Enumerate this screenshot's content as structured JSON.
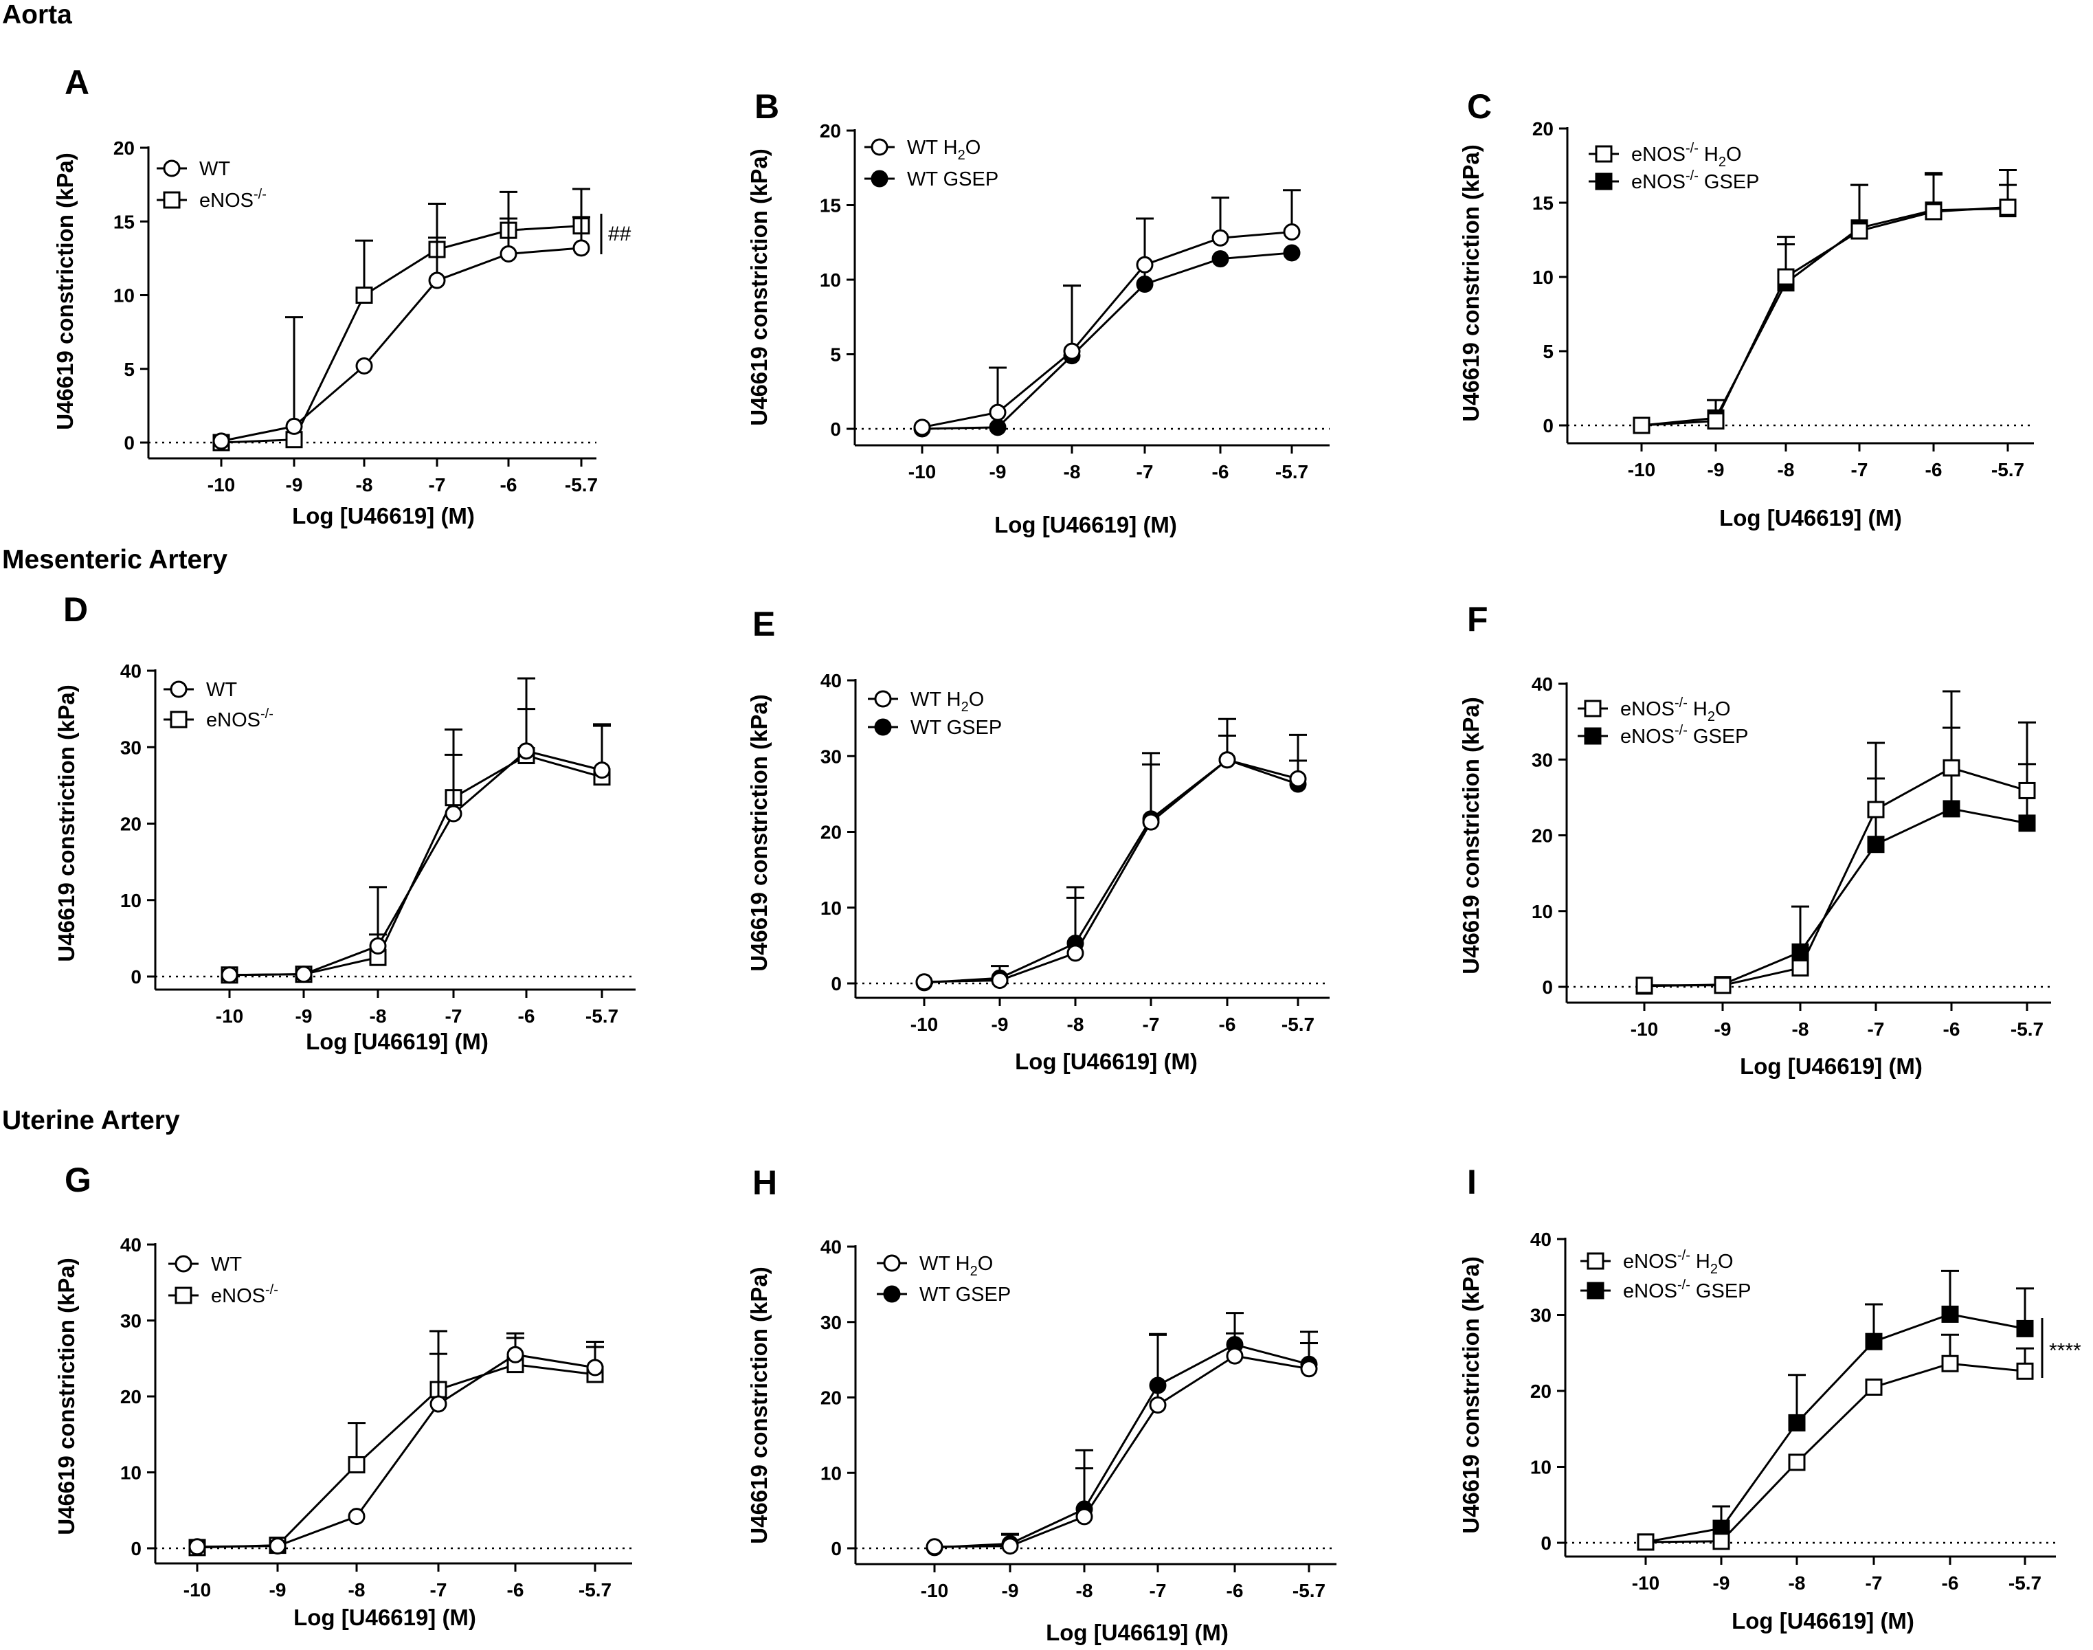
{
  "sections": [
    {
      "name": "aorta",
      "title": "Aorta"
    },
    {
      "name": "mesenteric",
      "title": "Mesenteric Artery"
    },
    {
      "name": "uterine",
      "title": "Uterine Artery"
    }
  ],
  "chart_data": [
    {
      "panel": "A",
      "type": "line",
      "xlabel": "Log [U46619] (M)",
      "ylabel": "U46619 constriction (kPa)",
      "categories": [
        "-10",
        "-9",
        "-8",
        "-7",
        "-6",
        "-5.7"
      ],
      "ylim": [
        0,
        20
      ],
      "yticks": [
        0,
        5,
        10,
        15,
        20
      ],
      "significance": "##",
      "series": [
        {
          "name": "WT",
          "label_main": "WT",
          "label_sup": "",
          "label_sub": "",
          "label_tail": "",
          "marker": "circle-open",
          "values": [
            0.1,
            1.1,
            5.2,
            11.0,
            12.8,
            13.2
          ],
          "errors": [
            0.0,
            7.4,
            0.0,
            2.9,
            2.4,
            2.1
          ]
        },
        {
          "name": "eNOS-/-",
          "label_main": "eNOS",
          "label_sup": "-/-",
          "label_sub": "",
          "label_tail": "",
          "marker": "square-open",
          "values": [
            0.0,
            0.2,
            10.0,
            13.1,
            14.4,
            14.7
          ],
          "errors": [
            0.0,
            0.0,
            3.7,
            3.1,
            2.6,
            2.5
          ]
        }
      ]
    },
    {
      "panel": "B",
      "type": "line",
      "xlabel": "Log [U46619] (M)",
      "ylabel": "U46619 constriction (kPa)",
      "categories": [
        "-10",
        "-9",
        "-8",
        "-7",
        "-6",
        "-5.7"
      ],
      "ylim": [
        0,
        20
      ],
      "yticks": [
        0,
        5,
        10,
        15,
        20
      ],
      "significance": "",
      "series": [
        {
          "name": "WT H2O",
          "label_main": "WT H",
          "label_sup": "",
          "label_sub": "2",
          "label_tail": "O",
          "marker": "circle-open",
          "values": [
            0.1,
            1.1,
            5.2,
            11.0,
            12.8,
            13.2
          ],
          "errors": [
            0.0,
            3.0,
            4.4,
            3.1,
            2.7,
            2.8
          ]
        },
        {
          "name": "WT GSEP",
          "label_main": "WT GSEP",
          "label_sup": "",
          "label_sub": "",
          "label_tail": "",
          "marker": "circle-filled",
          "values": [
            0.0,
            0.1,
            4.9,
            9.7,
            11.4,
            11.8
          ],
          "errors": [
            0.0,
            0.0,
            4.7,
            4.4,
            0.0,
            0.0
          ]
        }
      ]
    },
    {
      "panel": "C",
      "type": "line",
      "xlabel": "Log [U46619] (M)",
      "ylabel": "U46619 constriction (kPa)",
      "categories": [
        "-10",
        "-9",
        "-8",
        "-7",
        "-6",
        "-5.7"
      ],
      "ylim": [
        0,
        20
      ],
      "yticks": [
        0,
        5,
        10,
        15,
        20
      ],
      "significance": "",
      "series": [
        {
          "name": "eNOS-/- H2O",
          "label_main": "eNOS",
          "label_sup": "-/-",
          "label_sub": "2",
          "label_tail": " H|O",
          "marker": "square-open",
          "values": [
            0.0,
            0.3,
            10.0,
            13.1,
            14.4,
            14.7
          ],
          "errors": [
            0.0,
            1.4,
            2.7,
            3.1,
            2.6,
            2.5
          ]
        },
        {
          "name": "eNOS-/- GSEP",
          "label_main": "eNOS",
          "label_sup": "-/-",
          "label_sub": "",
          "label_tail": " GSEP",
          "marker": "square-filled",
          "values": [
            0.0,
            0.5,
            9.6,
            13.3,
            14.5,
            14.6
          ],
          "errors": [
            0.0,
            0.0,
            2.6,
            2.9,
            2.4,
            1.6
          ]
        }
      ]
    },
    {
      "panel": "D",
      "type": "line",
      "xlabel": "Log [U46619] (M)",
      "ylabel": "U46619 constriction (kPa)",
      "categories": [
        "-10",
        "-9",
        "-8",
        "-7",
        "-6",
        "-5.7"
      ],
      "ylim": [
        0,
        40
      ],
      "yticks": [
        0,
        10,
        20,
        30,
        40
      ],
      "significance": "",
      "series": [
        {
          "name": "WT",
          "label_main": "WT",
          "label_sup": "",
          "label_sub": "",
          "label_tail": "",
          "marker": "circle-open",
          "values": [
            0.2,
            0.3,
            4.0,
            21.3,
            29.5,
            27.0
          ],
          "errors": [
            0.0,
            0.0,
            1.5,
            7.7,
            5.5,
            5.8
          ]
        },
        {
          "name": "eNOS-/-",
          "label_main": "eNOS",
          "label_sup": "-/-",
          "label_sub": "",
          "label_tail": "",
          "marker": "square-open",
          "values": [
            0.2,
            0.3,
            2.5,
            23.4,
            28.9,
            26.1
          ],
          "errors": [
            0.0,
            0.0,
            9.2,
            8.9,
            10.1,
            6.9
          ]
        }
      ]
    },
    {
      "panel": "E",
      "type": "line",
      "xlabel": "Log [U46619] (M)",
      "ylabel": "U46619 constriction (kPa)",
      "categories": [
        "-10",
        "-9",
        "-8",
        "-7",
        "-6",
        "-5.7"
      ],
      "ylim": [
        0,
        40
      ],
      "yticks": [
        0,
        10,
        20,
        30,
        40
      ],
      "significance": "",
      "series": [
        {
          "name": "WT H2O",
          "label_main": "WT H",
          "label_sup": "",
          "label_sub": "2",
          "label_tail": "O",
          "marker": "circle-open",
          "values": [
            0.2,
            0.4,
            4.0,
            21.3,
            29.5,
            27.0
          ],
          "errors": [
            0.0,
            1.9,
            7.3,
            7.6,
            5.4,
            5.8
          ]
        },
        {
          "name": "WT GSEP",
          "label_main": "WT GSEP",
          "label_sup": "",
          "label_sub": "",
          "label_tail": "",
          "marker": "circle-filled",
          "values": [
            0.1,
            0.7,
            5.3,
            21.7,
            29.5,
            26.3
          ],
          "errors": [
            0.0,
            0.0,
            7.4,
            8.7,
            3.2,
            3.1
          ]
        }
      ]
    },
    {
      "panel": "F",
      "type": "line",
      "xlabel": "Log [U46619] (M)",
      "ylabel": "U46619 constriction (kPa)",
      "categories": [
        "-10",
        "-9",
        "-8",
        "-7",
        "-6",
        "-5.7"
      ],
      "ylim": [
        0,
        40
      ],
      "yticks": [
        0,
        10,
        20,
        30,
        40
      ],
      "significance": "",
      "series": [
        {
          "name": "eNOS-/- H2O",
          "label_main": "eNOS",
          "label_sup": "-/-",
          "label_sub": "2",
          "label_tail": " H|O",
          "marker": "square-open",
          "values": [
            0.2,
            0.2,
            2.5,
            23.4,
            28.9,
            25.9
          ],
          "errors": [
            0.0,
            0.0,
            8.1,
            8.8,
            10.1,
            9.0
          ]
        },
        {
          "name": "eNOS-/- GSEP",
          "label_main": "eNOS",
          "label_sup": "-/-",
          "label_sub": "",
          "label_tail": " GSEP",
          "marker": "square-filled",
          "values": [
            0.1,
            0.3,
            4.6,
            18.8,
            23.5,
            21.6
          ],
          "errors": [
            0.0,
            0.0,
            0.0,
            8.7,
            10.7,
            7.8
          ]
        }
      ]
    },
    {
      "panel": "G",
      "type": "line",
      "xlabel": "Log [U46619] (M)",
      "ylabel": "U46619 constriction (kPa)",
      "categories": [
        "-10",
        "-9",
        "-8",
        "-7",
        "-6",
        "-5.7"
      ],
      "ylim": [
        0,
        40
      ],
      "yticks": [
        0,
        10,
        20,
        30,
        40
      ],
      "significance": "",
      "series": [
        {
          "name": "WT",
          "label_main": "WT",
          "label_sup": "",
          "label_sub": "",
          "label_tail": "",
          "marker": "circle-open",
          "values": [
            0.2,
            0.3,
            4.2,
            19.0,
            25.5,
            23.8
          ],
          "errors": [
            0.0,
            0.0,
            0.0,
            6.6,
            2.8,
            3.4
          ]
        },
        {
          "name": "eNOS-/-",
          "label_main": "eNOS",
          "label_sup": "-/-",
          "label_sub": "",
          "label_tail": "",
          "marker": "square-open",
          "values": [
            0.1,
            0.4,
            11.0,
            20.9,
            24.2,
            22.9
          ],
          "errors": [
            0.0,
            0.0,
            5.5,
            7.7,
            3.5,
            3.6
          ]
        }
      ]
    },
    {
      "panel": "H",
      "type": "line",
      "xlabel": "Log [U46619] (M)",
      "ylabel": "U46619 constriction (kPa)",
      "categories": [
        "-10",
        "-9",
        "-8",
        "-7",
        "-6",
        "-5.7"
      ],
      "ylim": [
        0,
        40
      ],
      "yticks": [
        0,
        10,
        20,
        30,
        40
      ],
      "significance": "",
      "series": [
        {
          "name": "WT H2O",
          "label_main": "WT H",
          "label_sup": "",
          "label_sub": "2",
          "label_tail": "O",
          "marker": "circle-open",
          "values": [
            0.2,
            0.3,
            4.2,
            19.0,
            25.5,
            23.8
          ],
          "errors": [
            0.0,
            1.5,
            6.4,
            9.4,
            3.0,
            3.4
          ]
        },
        {
          "name": "WT GSEP",
          "label_main": "WT GSEP",
          "label_sup": "",
          "label_sub": "",
          "label_tail": "",
          "marker": "circle-filled",
          "values": [
            0.1,
            0.6,
            5.2,
            21.6,
            27.0,
            24.4
          ],
          "errors": [
            0.0,
            1.3,
            7.8,
            6.7,
            4.2,
            4.3
          ]
        }
      ]
    },
    {
      "panel": "I",
      "type": "line",
      "xlabel": "Log [U46619] (M)",
      "ylabel": "U46619 constriction (kPa)",
      "categories": [
        "-10",
        "-9",
        "-8",
        "-7",
        "-6",
        "-5.7"
      ],
      "ylim": [
        0,
        40
      ],
      "yticks": [
        0,
        10,
        20,
        30,
        40
      ],
      "significance": "****",
      "series": [
        {
          "name": "eNOS-/- H2O",
          "label_main": "eNOS",
          "label_sup": "-/-",
          "label_sub": "2",
          "label_tail": " H|O",
          "marker": "square-open",
          "values": [
            0.1,
            0.2,
            10.6,
            20.5,
            23.6,
            22.6
          ],
          "errors": [
            0.0,
            0.0,
            0.0,
            0.0,
            3.8,
            3.0
          ]
        },
        {
          "name": "eNOS-/- GSEP",
          "label_main": "eNOS",
          "label_sup": "-/-",
          "label_sub": "",
          "label_tail": " GSEP",
          "marker": "square-filled",
          "values": [
            0.1,
            1.9,
            15.8,
            26.5,
            30.1,
            28.2
          ],
          "errors": [
            0.0,
            2.9,
            6.3,
            4.9,
            5.7,
            5.3
          ]
        }
      ]
    }
  ]
}
